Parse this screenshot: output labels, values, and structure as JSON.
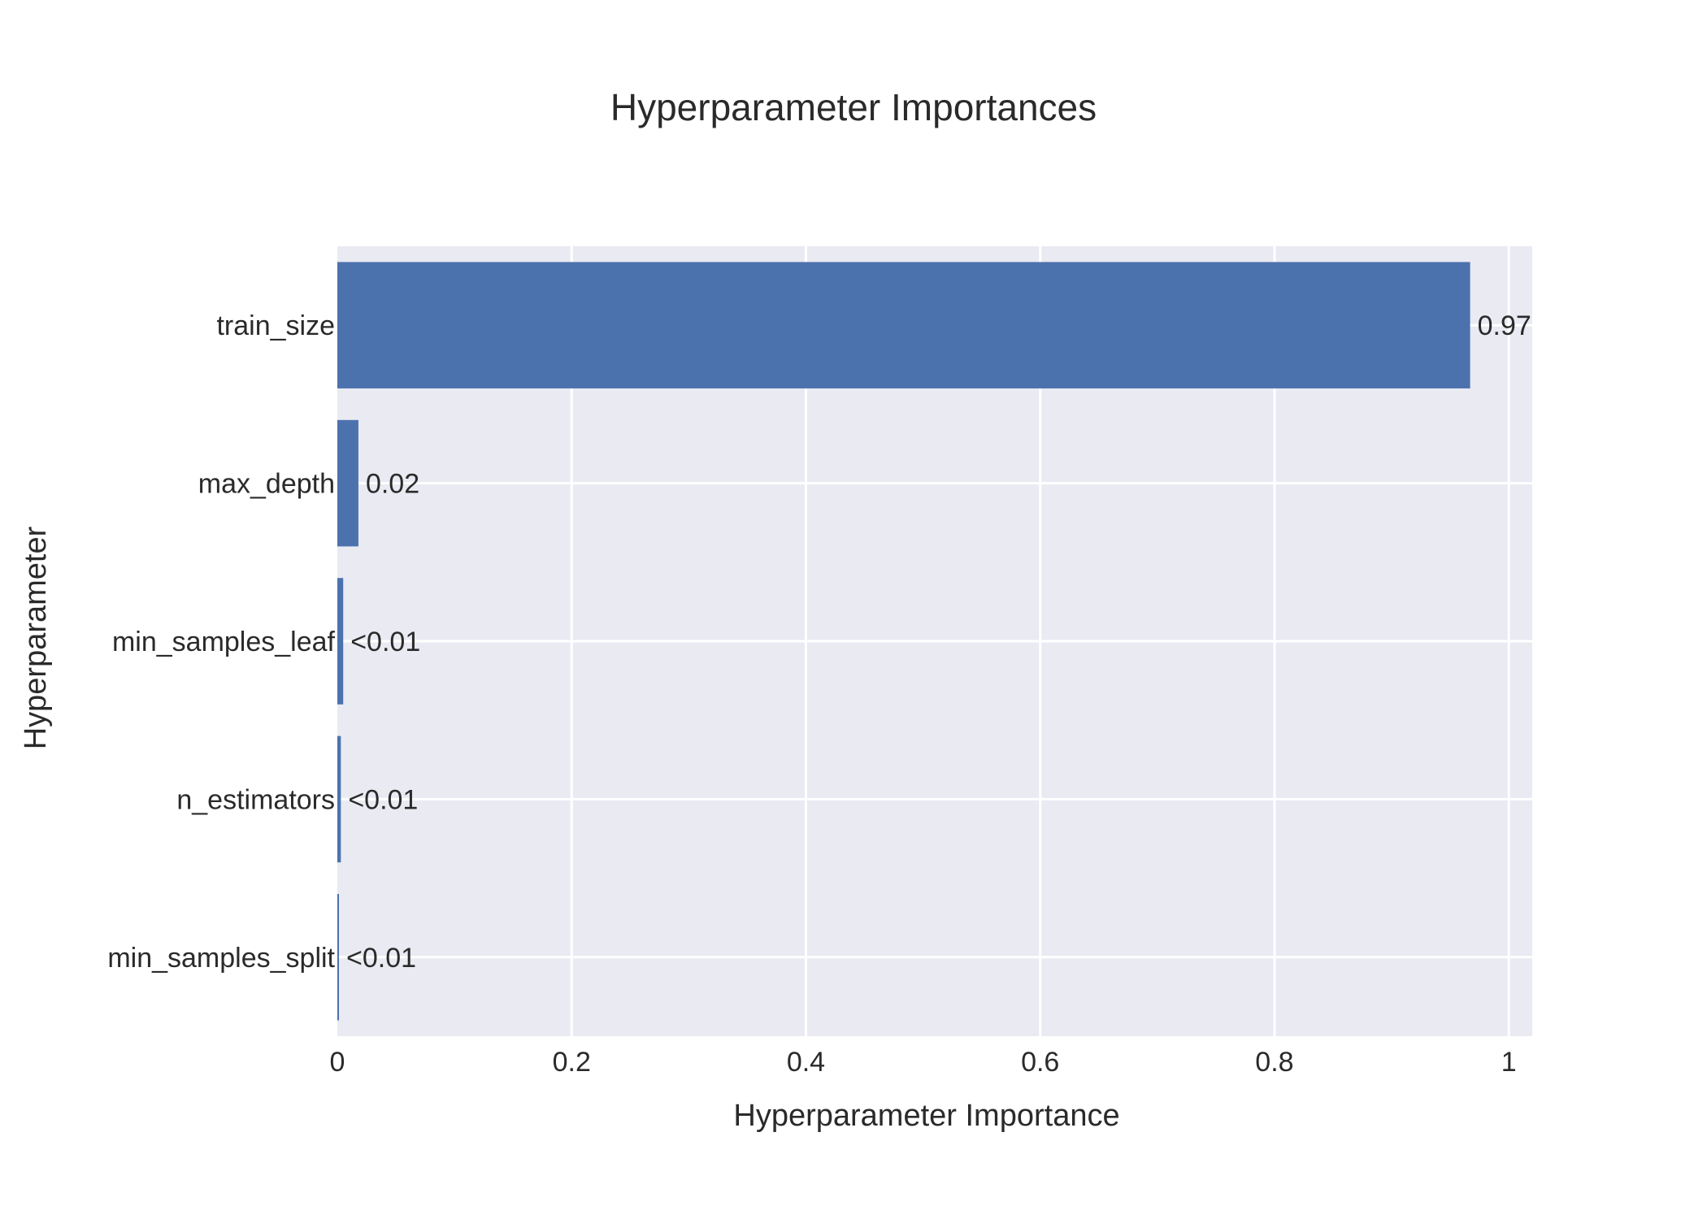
{
  "chart_data": {
    "type": "bar",
    "orientation": "horizontal",
    "title": "Hyperparameter Importances",
    "xlabel": "Hyperparameter Importance",
    "ylabel": "Hyperparameter",
    "xlim": [
      0,
      1.02
    ],
    "xticks": [
      0,
      0.2,
      0.4,
      0.6,
      0.8,
      1
    ],
    "xtick_labels": [
      "0",
      "0.2",
      "0.4",
      "0.6",
      "0.8",
      "1"
    ],
    "grid": true,
    "categories": [
      "train_size",
      "max_depth",
      "min_samples_leaf",
      "n_estimators",
      "min_samples_split"
    ],
    "values": [
      0.967,
      0.018,
      0.005,
      0.003,
      0.001
    ],
    "value_labels": [
      "0.97",
      "0.02",
      "<0.01",
      "<0.01",
      "<0.01"
    ],
    "colors": {
      "bar": "#4c72ae",
      "plot_background": "#e9eaf2",
      "grid": "#ffffff",
      "text": "#2a2a2a"
    }
  }
}
